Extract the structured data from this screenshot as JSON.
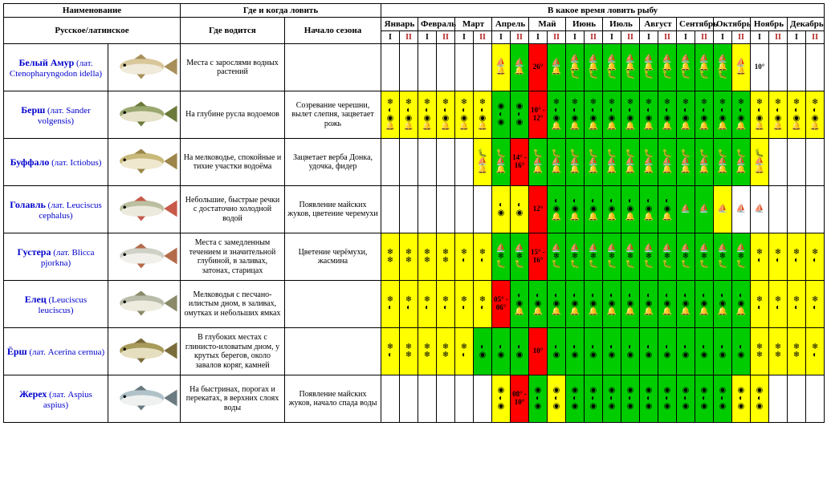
{
  "table": {
    "header": {
      "name": "Наименование",
      "where": "Где и когда ловить",
      "when": "В какое время ловить рыбу",
      "nameSub": "Русское/латинское",
      "loc": "Где водится",
      "season": "Начало сезона",
      "months": [
        "Январь",
        "Февраль",
        "Март",
        "Апрель",
        "Май",
        "Июнь",
        "Июль",
        "Август",
        "Сентябрь",
        "Октябрь",
        "Ноябрь",
        "Декабрь"
      ],
      "half1": "I",
      "half2": "II"
    },
    "colors": {
      "yellow": "#ffff00",
      "green": "#00cc00",
      "red": "#ff0000",
      "link": "#0000cd"
    },
    "iconSets": {
      "boat": "⛵ 🔔",
      "star": "❄ ❄",
      "fish3": "❄ ◐ ◉ 🔔",
      "fish2": "◐ ◉",
      "worm": "◐ ◉ 🔔",
      "tackle": "🐛 ⛵ 🔔",
      "spin": "⛵ ❄ 🐛",
      "net": "⛵ 🔔 🐛",
      "sun": "❄ ◐",
      "moon": "◐ ◉",
      "boatSun": "⛵",
      "flag": "⚑ ⚑",
      "target": "◉ ◐ ◉"
    },
    "rows": [
      {
        "nameRu": "Белый Амур",
        "nameLat": "(лат. Ctenopharyngodon idella)",
        "fishColors": {
          "body": "#d8c79a",
          "belly": "#f0eadb",
          "fin": "#a88f5a"
        },
        "loc": "Места с зарослями водных растений",
        "season": "",
        "cells": [
          null,
          null,
          null,
          null,
          null,
          null,
          {
            "bg": "yellow",
            "icons": "boat"
          },
          {
            "bg": "green",
            "icons": "boat"
          },
          {
            "bg": "red",
            "note": "26°"
          },
          {
            "bg": "green",
            "icons": "boat"
          },
          {
            "bg": "green",
            "icons": "net"
          },
          {
            "bg": "green",
            "icons": "net"
          },
          {
            "bg": "green",
            "icons": "net"
          },
          {
            "bg": "green",
            "icons": "net"
          },
          {
            "bg": "green",
            "icons": "net"
          },
          {
            "bg": "green",
            "icons": "net"
          },
          {
            "bg": "green",
            "icons": "net"
          },
          {
            "bg": "green",
            "icons": "net"
          },
          {
            "bg": "green",
            "icons": "net"
          },
          {
            "bg": "yellow",
            "icons": "boat"
          },
          {
            "bg": "",
            "note": "10°"
          },
          null,
          null,
          null
        ]
      },
      {
        "nameRu": "Берш",
        "nameLat": "(лат. Sander volgensis)",
        "fishColors": {
          "body": "#9aa86f",
          "belly": "#e6e2c9",
          "fin": "#6b7a3a"
        },
        "loc": "На глубине русла водоемов",
        "season": "Созревание черешни, вылет слепня, зацветает рожь",
        "cells": [
          {
            "bg": "yellow",
            "icons": "fish3"
          },
          {
            "bg": "yellow",
            "icons": "fish3"
          },
          {
            "bg": "yellow",
            "icons": "fish3"
          },
          {
            "bg": "yellow",
            "icons": "fish3"
          },
          {
            "bg": "yellow",
            "icons": "fish3"
          },
          {
            "bg": "yellow",
            "icons": "fish3"
          },
          {
            "bg": "green",
            "icons": "target"
          },
          {
            "bg": "green",
            "icons": "target"
          },
          {
            "bg": "red",
            "note": "10° - 12°"
          },
          {
            "bg": "green",
            "icons": "fish3"
          },
          {
            "bg": "green",
            "icons": "fish3"
          },
          {
            "bg": "green",
            "icons": "fish3"
          },
          {
            "bg": "green",
            "icons": "fish3"
          },
          {
            "bg": "green",
            "icons": "fish3"
          },
          {
            "bg": "green",
            "icons": "fish3"
          },
          {
            "bg": "green",
            "icons": "fish3"
          },
          {
            "bg": "green",
            "icons": "fish3"
          },
          {
            "bg": "green",
            "icons": "fish3"
          },
          {
            "bg": "green",
            "icons": "fish3"
          },
          {
            "bg": "green",
            "icons": "fish3"
          },
          {
            "bg": "yellow",
            "icons": "fish3"
          },
          {
            "bg": "yellow",
            "icons": "fish3"
          },
          {
            "bg": "yellow",
            "icons": "fish3"
          },
          {
            "bg": "yellow",
            "icons": "fish3"
          }
        ]
      },
      {
        "nameRu": "Буффало",
        "nameLat": "(лат. Ictiobus)",
        "fishColors": {
          "body": "#c9b97a",
          "belly": "#efe8cf",
          "fin": "#9c864a"
        },
        "loc": "На мелководье, спокойные и тихие участки водоёма",
        "season": "Зацветает верба Донка, удочка, фидер",
        "cells": [
          null,
          null,
          null,
          null,
          null,
          {
            "bg": "yellow",
            "icons": "tackle"
          },
          {
            "bg": "green",
            "icons": "tackle"
          },
          {
            "bg": "red",
            "note": "14° - 16°"
          },
          {
            "bg": "green",
            "icons": "tackle"
          },
          {
            "bg": "green",
            "icons": "tackle"
          },
          {
            "bg": "green",
            "icons": "tackle"
          },
          {
            "bg": "green",
            "icons": "tackle"
          },
          {
            "bg": "green",
            "icons": "tackle"
          },
          {
            "bg": "green",
            "icons": "tackle"
          },
          {
            "bg": "green",
            "icons": "tackle"
          },
          {
            "bg": "green",
            "icons": "tackle"
          },
          {
            "bg": "green",
            "icons": "tackle"
          },
          {
            "bg": "green",
            "icons": "tackle"
          },
          {
            "bg": "green",
            "icons": "tackle"
          },
          {
            "bg": "green",
            "icons": "tackle"
          },
          {
            "bg": "yellow",
            "icons": "tackle"
          },
          null,
          null,
          null
        ]
      },
      {
        "nameRu": "Голавль",
        "nameLat": "(лат. Leuciscus cephalus)",
        "fishColors": {
          "body": "#bcbfa0",
          "belly": "#eceadd",
          "fin": "#c75a4a"
        },
        "loc": "Небольшие, быстрые речки с достаточно холодной водой",
        "season": "Появление майских жуков, цветение черемухи",
        "cells": [
          null,
          null,
          null,
          null,
          null,
          null,
          {
            "bg": "yellow",
            "icons": "fish2"
          },
          {
            "bg": "yellow",
            "icons": "fish2"
          },
          {
            "bg": "red",
            "note": "12°"
          },
          {
            "bg": "green",
            "icons": "worm"
          },
          {
            "bg": "green",
            "icons": "worm"
          },
          {
            "bg": "green",
            "icons": "worm"
          },
          {
            "bg": "green",
            "icons": "worm"
          },
          {
            "bg": "green",
            "icons": "worm"
          },
          {
            "bg": "green",
            "icons": "worm"
          },
          {
            "bg": "green",
            "icons": "worm"
          },
          {
            "bg": "green",
            "icons": "boatSun"
          },
          {
            "bg": "green",
            "icons": "boatSun"
          },
          {
            "bg": "yellow",
            "icons": "boatSun"
          },
          {
            "bg": "",
            "icons": "boatSun"
          },
          {
            "bg": "",
            "icons": "boatSun"
          },
          null,
          null,
          null
        ]
      },
      {
        "nameRu": "Густера",
        "nameLat": "(лат. Blicca pjorkna)",
        "fishColors": {
          "body": "#cfd0c6",
          "belly": "#f1f0ea",
          "fin": "#b36b4a"
        },
        "loc": "Места с замедленным течением и значительной глубиной, в заливах, затонах, старицах",
        "season": "Цветение черёмухи, жасмина",
        "cells": [
          {
            "bg": "yellow",
            "icons": "star"
          },
          {
            "bg": "yellow",
            "icons": "star"
          },
          {
            "bg": "yellow",
            "icons": "star"
          },
          {
            "bg": "yellow",
            "icons": "star"
          },
          {
            "bg": "yellow",
            "icons": "sun"
          },
          {
            "bg": "yellow",
            "icons": "sun"
          },
          {
            "bg": "green",
            "icons": "spin"
          },
          {
            "bg": "green",
            "icons": "spin"
          },
          {
            "bg": "red",
            "note": "15° - 16°"
          },
          {
            "bg": "green",
            "icons": "spin"
          },
          {
            "bg": "green",
            "icons": "spin"
          },
          {
            "bg": "green",
            "icons": "spin"
          },
          {
            "bg": "green",
            "icons": "spin"
          },
          {
            "bg": "green",
            "icons": "spin"
          },
          {
            "bg": "green",
            "icons": "spin"
          },
          {
            "bg": "green",
            "icons": "spin"
          },
          {
            "bg": "green",
            "icons": "spin"
          },
          {
            "bg": "green",
            "icons": "spin"
          },
          {
            "bg": "green",
            "icons": "spin"
          },
          {
            "bg": "green",
            "icons": "spin"
          },
          {
            "bg": "yellow",
            "icons": "sun"
          },
          {
            "bg": "yellow",
            "icons": "sun"
          },
          {
            "bg": "yellow",
            "icons": "sun"
          },
          {
            "bg": "yellow",
            "icons": "sun"
          }
        ]
      },
      {
        "nameRu": "Елец",
        "nameLat": "(Leuciscus leuciscus)",
        "fishColors": {
          "body": "#b8bca8",
          "belly": "#ecebde",
          "fin": "#8a8a6a"
        },
        "loc": "Мелководья с песчано-илистым дном, в заливах, омутках и небольших ямках",
        "season": "",
        "cells": [
          {
            "bg": "yellow",
            "icons": "sun"
          },
          {
            "bg": "yellow",
            "icons": "sun"
          },
          {
            "bg": "yellow",
            "icons": "sun"
          },
          {
            "bg": "yellow",
            "icons": "sun"
          },
          {
            "bg": "yellow",
            "icons": "sun"
          },
          {
            "bg": "yellow",
            "icons": "sun"
          },
          {
            "bg": "red",
            "note": "05° - 06°"
          },
          {
            "bg": "green",
            "icons": "worm"
          },
          {
            "bg": "green",
            "icons": "worm"
          },
          {
            "bg": "green",
            "icons": "worm"
          },
          {
            "bg": "green",
            "icons": "worm"
          },
          {
            "bg": "green",
            "icons": "worm"
          },
          {
            "bg": "green",
            "icons": "worm"
          },
          {
            "bg": "green",
            "icons": "worm"
          },
          {
            "bg": "green",
            "icons": "worm"
          },
          {
            "bg": "green",
            "icons": "worm"
          },
          {
            "bg": "green",
            "icons": "worm"
          },
          {
            "bg": "green",
            "icons": "worm"
          },
          {
            "bg": "green",
            "icons": "worm"
          },
          {
            "bg": "green",
            "icons": "worm"
          },
          {
            "bg": "yellow",
            "icons": "sun"
          },
          {
            "bg": "yellow",
            "icons": "sun"
          },
          {
            "bg": "yellow",
            "icons": "sun"
          },
          {
            "bg": "yellow",
            "icons": "sun"
          }
        ]
      },
      {
        "nameRu": "Ёрш",
        "nameLat": "(лат. Acerina cernua)",
        "fishColors": {
          "body": "#a89a5a",
          "belly": "#e6dfbf",
          "fin": "#7a6c3a"
        },
        "loc": "В глубоких местах с глинисто-иловатым дном, у крутых берегов, около завалов коряг, камней",
        "season": "",
        "cells": [
          {
            "bg": "yellow",
            "icons": "sun"
          },
          {
            "bg": "yellow",
            "icons": "star"
          },
          {
            "bg": "yellow",
            "icons": "star"
          },
          {
            "bg": "yellow",
            "icons": "star"
          },
          {
            "bg": "yellow",
            "icons": "sun"
          },
          {
            "bg": "green",
            "icons": "moon"
          },
          {
            "bg": "green",
            "icons": "moon"
          },
          {
            "bg": "green",
            "icons": "moon"
          },
          {
            "bg": "red",
            "note": "10°"
          },
          {
            "bg": "green",
            "icons": "moon"
          },
          {
            "bg": "green",
            "icons": "moon"
          },
          {
            "bg": "green",
            "icons": "moon"
          },
          {
            "bg": "green",
            "icons": "moon"
          },
          {
            "bg": "green",
            "icons": "moon"
          },
          {
            "bg": "green",
            "icons": "moon"
          },
          {
            "bg": "green",
            "icons": "moon"
          },
          {
            "bg": "green",
            "icons": "moon"
          },
          {
            "bg": "green",
            "icons": "moon"
          },
          {
            "bg": "green",
            "icons": "moon"
          },
          {
            "bg": "green",
            "icons": "moon"
          },
          {
            "bg": "yellow",
            "icons": "star"
          },
          {
            "bg": "yellow",
            "icons": "star"
          },
          {
            "bg": "yellow",
            "icons": "star"
          },
          {
            "bg": "yellow",
            "icons": "sun"
          }
        ]
      },
      {
        "nameRu": "Жерех",
        "nameLat": "(лат. Aspius aspius)",
        "fishColors": {
          "body": "#b0c2c8",
          "belly": "#eef1f0",
          "fin": "#6a7a80"
        },
        "loc": "На быстринах, порогах и перекатах, в верхних слоях воды",
        "season": "Появление майских жуков, начало спада воды",
        "cells": [
          null,
          null,
          null,
          null,
          null,
          null,
          {
            "bg": "yellow",
            "icons": "target"
          },
          {
            "bg": "red",
            "note": "08° - 10°"
          },
          {
            "bg": "green",
            "icons": "target"
          },
          {
            "bg": "yellow",
            "icons": "target"
          },
          {
            "bg": "green",
            "icons": "target"
          },
          {
            "bg": "green",
            "icons": "target"
          },
          {
            "bg": "green",
            "icons": "target"
          },
          {
            "bg": "green",
            "icons": "target"
          },
          {
            "bg": "green",
            "icons": "target"
          },
          {
            "bg": "green",
            "icons": "target"
          },
          {
            "bg": "green",
            "icons": "target"
          },
          {
            "bg": "green",
            "icons": "target"
          },
          {
            "bg": "green",
            "icons": "target"
          },
          {
            "bg": "yellow",
            "icons": "target"
          },
          {
            "bg": "yellow",
            "icons": "target"
          },
          null,
          null,
          null
        ]
      }
    ]
  }
}
